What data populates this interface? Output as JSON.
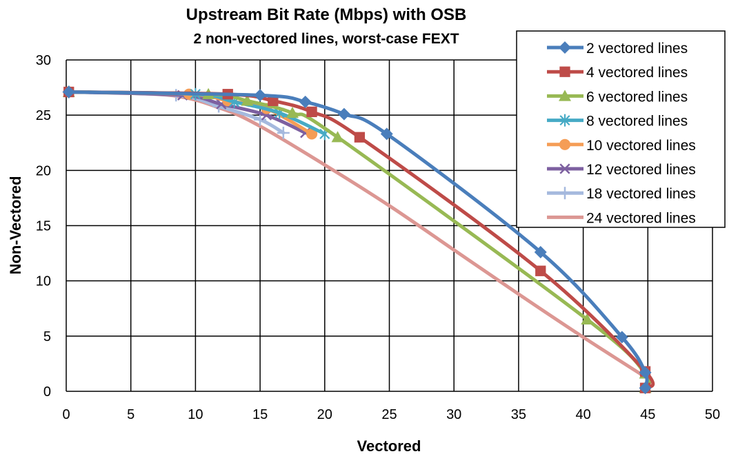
{
  "chart_data": {
    "type": "line",
    "title": "Upstream Bit Rate (Mbps) with OSB",
    "subtitle": "2 non-vectored lines, worst-case FEXT",
    "xlabel": "Vectored",
    "ylabel": "Non-Vectored",
    "xlim": [
      0,
      50
    ],
    "ylim": [
      0,
      30
    ],
    "xticks": [
      "0",
      "5",
      "10",
      "15",
      "20",
      "25",
      "30",
      "35",
      "40",
      "45",
      "50"
    ],
    "yticks": [
      "0",
      "5",
      "10",
      "15",
      "20",
      "25",
      "30"
    ],
    "grid": true,
    "legend_position": "top-right",
    "series": [
      {
        "name": "2 vectored lines",
        "color": "#4a7ebb",
        "marker": "diamond",
        "x": [
          0.2,
          15,
          18.5,
          21.5,
          24.8,
          36.7,
          43,
          44.8,
          44.8
        ],
        "y": [
          27.1,
          26.8,
          26.2,
          25.1,
          23.3,
          12.6,
          4.9,
          1.7,
          0.3
        ]
      },
      {
        "name": "4 vectored lines",
        "color": "#be4b48",
        "marker": "square",
        "x": [
          0.2,
          12.5,
          16,
          19,
          22.7,
          36.7,
          44.8,
          44.8
        ],
        "y": [
          27.1,
          26.9,
          26.3,
          25.3,
          23.0,
          10.9,
          1.8,
          0.3
        ]
      },
      {
        "name": "6 vectored lines",
        "color": "#98b954",
        "marker": "triangle",
        "x": [
          0.2,
          11,
          14,
          17.5,
          21,
          40.3,
          44.8,
          44.8
        ],
        "y": [
          27.1,
          26.9,
          26.3,
          25.2,
          23.0,
          6.5,
          1.6,
          0.3
        ]
      },
      {
        "name": "8 vectored lines",
        "color": "#46aac5",
        "marker": "asterisk",
        "x": [
          0.2,
          10,
          13,
          16.5,
          20
        ],
        "y": [
          27.1,
          26.9,
          26.2,
          25.2,
          23.3
        ]
      },
      {
        "name": "10 vectored lines",
        "color": "#f59d56",
        "marker": "circle",
        "x": [
          0.2,
          9.5,
          12.5,
          15.5,
          19
        ],
        "y": [
          27.1,
          26.9,
          26.3,
          25.6,
          23.3
        ]
      },
      {
        "name": "12 vectored lines",
        "color": "#7d60a0",
        "marker": "x",
        "x": [
          0.2,
          9,
          12,
          15.5,
          18.5
        ],
        "y": [
          27.1,
          26.8,
          26.0,
          25.0,
          23.4
        ]
      },
      {
        "name": "18 vectored lines",
        "color": "#a5b9de",
        "marker": "plus",
        "x": [
          0.2,
          8.5,
          11.8,
          15,
          16.8
        ],
        "y": [
          27.1,
          26.8,
          25.8,
          24.6,
          23.4
        ]
      },
      {
        "name": "24 vectored lines",
        "color": "#dc9793",
        "marker": "none",
        "x": [
          0.2,
          8,
          12,
          15,
          20,
          25,
          30,
          35,
          40,
          44.8
        ],
        "y": [
          27.1,
          26.8,
          25.6,
          24.0,
          20.5,
          16.8,
          12.8,
          8.8,
          4.9,
          1.3
        ]
      }
    ]
  }
}
